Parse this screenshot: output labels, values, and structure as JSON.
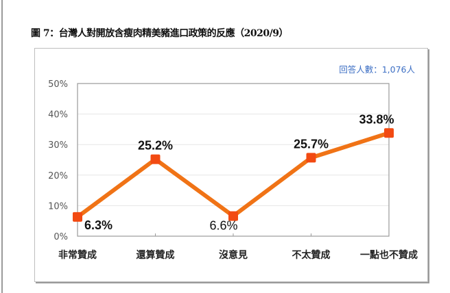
{
  "title": "圖 7：台灣人對開放含瘦肉精美豬進口政策的反應（2020/9）",
  "respondents_label": "回答人數：1,076人",
  "colors": {
    "line": "#F07316",
    "marker": "#F24A12",
    "label_blue": "#3D6FC4",
    "grid": "#E6E6E6",
    "axis": "#9A9A9A"
  },
  "chart_data": {
    "type": "line",
    "title": "圖 7：台灣人對開放含瘦肉精美豬進口政策的反應（2020/9）",
    "annotation": "回答人數：1,076人",
    "categories": [
      "非常贊成",
      "還算贊成",
      "沒意見",
      "不太贊成",
      "一點也不贊成"
    ],
    "values": [
      6.3,
      25.2,
      6.6,
      25.7,
      33.8
    ],
    "value_labels": [
      "6.3%",
      "25.2%",
      "6.6%",
      "25.7%",
      "33.8%"
    ],
    "xlabel": "",
    "ylabel": "",
    "yticks": [
      "0%",
      "10%",
      "20%",
      "30%",
      "40%",
      "50%"
    ],
    "ylim": [
      0,
      50
    ],
    "grid": true,
    "legend": "none"
  }
}
